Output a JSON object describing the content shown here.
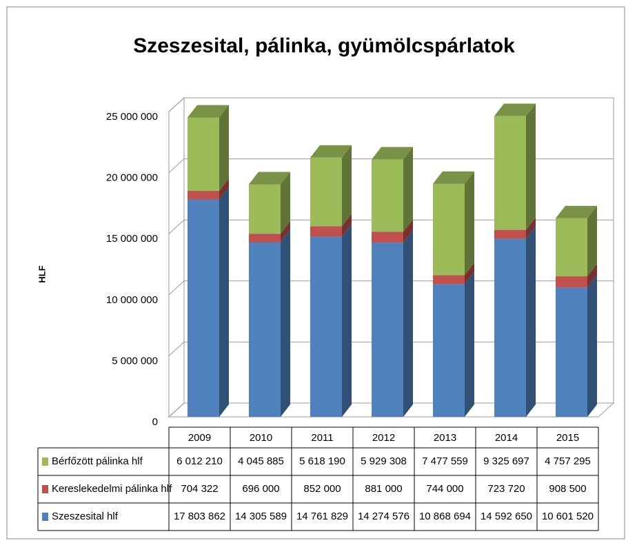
{
  "chart_data": {
    "type": "bar3d_stacked",
    "title": "Szeszesital, pálinka, gyümölcspárlatok",
    "y_label": "HLF",
    "categories": [
      "2009",
      "2010",
      "2011",
      "2012",
      "2013",
      "2014",
      "2015"
    ],
    "series": [
      {
        "name": "Bérfőzött pálinka  hlf",
        "color": "#9bbb59",
        "values": [
          6012210,
          4045885,
          5618190,
          5929308,
          7477559,
          9325697,
          4757295
        ],
        "value_labels": [
          "6 012 210",
          "4 045 885",
          "5 618 190",
          "5 929 308",
          "7 477 559",
          "9 325 697",
          "4 757 295"
        ]
      },
      {
        "name": "Kereslekedelmi pálinka  hlf",
        "color": "#c0504d",
        "values": [
          704322,
          696000,
          852000,
          881000,
          744000,
          723720,
          908500
        ],
        "value_labels": [
          "704 322",
          "696 000",
          "852 000",
          "881 000",
          "744 000",
          "723 720",
          "908 500"
        ]
      },
      {
        "name": "Szeszesital hlf",
        "color": "#4f81bd",
        "values": [
          17803862,
          14305589,
          14761829,
          14274576,
          10868694,
          14592650,
          10601520
        ],
        "value_labels": [
          "17 803 862",
          "14 305 589",
          "14 761 829",
          "14 274 576",
          "10 868 694",
          "14 592 650",
          "10 601 520"
        ]
      }
    ],
    "ylim": [
      0,
      25000000
    ],
    "yticks": [
      0,
      {
        "value": 5000000,
        "label": "5 000 000"
      },
      {
        "value": 10000000,
        "label": "10 000 000"
      },
      {
        "value": 15000000,
        "label": "15 000 000"
      },
      {
        "value": 20000000,
        "label": "20 000 000"
      },
      {
        "value": 25000000,
        "label": "25 000 000"
      }
    ],
    "grid": true
  }
}
